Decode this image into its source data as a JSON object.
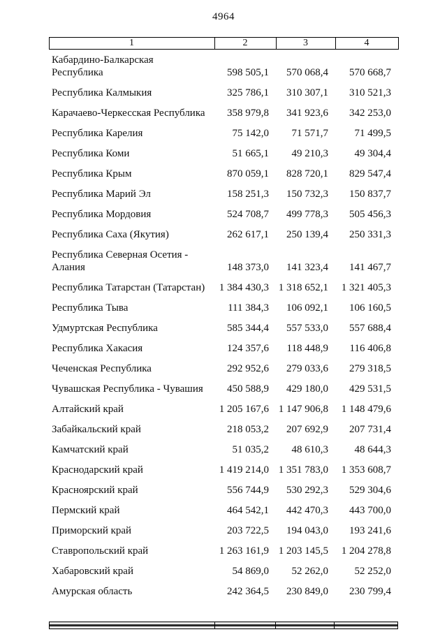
{
  "page": {
    "number": "4964"
  },
  "table": {
    "headers": [
      "1",
      "2",
      "3",
      "4"
    ],
    "rows": [
      {
        "name": "Кабардино-Балкарская Республика",
        "values": [
          "598 505,1",
          "570 068,4",
          "570 668,7"
        ]
      },
      {
        "name": "Республика Калмыкия",
        "values": [
          "325 786,1",
          "310 307,1",
          "310 521,3"
        ]
      },
      {
        "name": "Карачаево-Черкесская Республика",
        "values": [
          "358 979,8",
          "341 923,6",
          "342 253,0"
        ]
      },
      {
        "name": "Республика Карелия",
        "values": [
          "75 142,0",
          "71 571,7",
          "71 499,5"
        ]
      },
      {
        "name": "Республика Коми",
        "values": [
          "51 665,1",
          "49 210,3",
          "49 304,4"
        ]
      },
      {
        "name": "Республика Крым",
        "values": [
          "870 059,1",
          "828 720,1",
          "829 547,4"
        ]
      },
      {
        "name": "Республика Марий Эл",
        "values": [
          "158 251,3",
          "150 732,3",
          "150 837,7"
        ]
      },
      {
        "name": "Республика Мордовия",
        "values": [
          "524 708,7",
          "499 778,3",
          "505 456,3"
        ]
      },
      {
        "name": "Республика Саха (Якутия)",
        "values": [
          "262 617,1",
          "250 139,4",
          "250 331,3"
        ]
      },
      {
        "name": "Республика Северная Осетия - Алания",
        "values": [
          "148 373,0",
          "141 323,4",
          "141 467,7"
        ]
      },
      {
        "name": "Республика Татарстан (Татарстан)",
        "values": [
          "1 384 430,3",
          "1 318 652,1",
          "1 321 405,3"
        ]
      },
      {
        "name": "Республика Тыва",
        "values": [
          "111 384,3",
          "106 092,1",
          "106 160,5"
        ]
      },
      {
        "name": "Удмуртская Республика",
        "values": [
          "585 344,4",
          "557 533,0",
          "557 688,4"
        ]
      },
      {
        "name": "Республика Хакасия",
        "values": [
          "124 357,6",
          "118 448,9",
          "116 406,8"
        ]
      },
      {
        "name": "Чеченская Республика",
        "values": [
          "292 952,6",
          "279 033,6",
          "279 318,5"
        ]
      },
      {
        "name": "Чувашская Республика - Чувашия",
        "values": [
          "450 588,9",
          "429 180,0",
          "429 531,5"
        ]
      },
      {
        "name": "Алтайский край",
        "values": [
          "1 205 167,6",
          "1 147 906,8",
          "1 148 479,6"
        ]
      },
      {
        "name": "Забайкальский край",
        "values": [
          "218 053,2",
          "207 692,9",
          "207 731,4"
        ]
      },
      {
        "name": "Камчатский край",
        "values": [
          "51 035,2",
          "48 610,3",
          "48 644,3"
        ]
      },
      {
        "name": "Краснодарский край",
        "values": [
          "1 419 214,0",
          "1 351 783,0",
          "1 353 608,7"
        ]
      },
      {
        "name": "Красноярский край",
        "values": [
          "556 744,9",
          "530 292,3",
          "529 304,6"
        ]
      },
      {
        "name": "Пермский край",
        "values": [
          "464 542,1",
          "442 470,3",
          "443 700,0"
        ]
      },
      {
        "name": "Приморский край",
        "values": [
          "203 722,5",
          "194 043,0",
          "193 241,6"
        ]
      },
      {
        "name": "Ставропольский край",
        "values": [
          "1 263 161,9",
          "1 203 145,5",
          "1 204 278,8"
        ]
      },
      {
        "name": "Хабаровский край",
        "values": [
          "54 869,0",
          "52 262,0",
          "52 252,0"
        ]
      },
      {
        "name": "Амурская область",
        "values": [
          "242 364,5",
          "230 849,0",
          "230 799,4"
        ]
      }
    ]
  }
}
